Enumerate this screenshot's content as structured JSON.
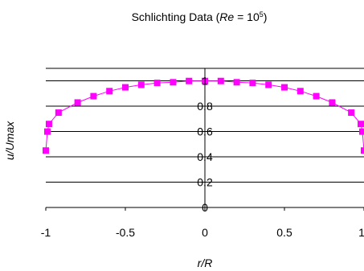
{
  "chart_data": {
    "type": "line",
    "title": {
      "prefix": "Schlichting Data (",
      "var": "Re",
      "mid": " = 10",
      "sup": "5",
      "suffix": ")"
    },
    "xlabel": "r/R",
    "ylabel": "u/Umax",
    "xlim": [
      -1,
      1
    ],
    "ylim": [
      0,
      1.1
    ],
    "x_ticks": [
      -1,
      -0.5,
      0,
      0.5,
      1
    ],
    "y_ticks": [
      0,
      0.2,
      0.4,
      0.6,
      0.8,
      1
    ],
    "x_tick_labels": [
      "-1",
      "-0.5",
      "0",
      "0.5",
      "1"
    ],
    "y_tick_labels": [
      "0",
      "0.2",
      "0.4",
      "0.6",
      "0.8",
      "1"
    ],
    "grid": "horizontal",
    "legend": "none",
    "series": [
      {
        "color": "#ff00ff",
        "marker": "square",
        "points": [
          [
            -1.0,
            0.45
          ],
          [
            -0.99,
            0.6
          ],
          [
            -0.98,
            0.66
          ],
          [
            -0.92,
            0.75
          ],
          [
            -0.8,
            0.83
          ],
          [
            -0.7,
            0.88
          ],
          [
            -0.6,
            0.92
          ],
          [
            -0.5,
            0.95
          ],
          [
            -0.4,
            0.97
          ],
          [
            -0.3,
            0.985
          ],
          [
            -0.2,
            0.99
          ],
          [
            -0.1,
            1.0
          ],
          [
            0.0,
            1.0
          ],
          [
            0.1,
            1.0
          ],
          [
            0.2,
            0.99
          ],
          [
            0.3,
            0.985
          ],
          [
            0.4,
            0.97
          ],
          [
            0.5,
            0.95
          ],
          [
            0.6,
            0.92
          ],
          [
            0.7,
            0.88
          ],
          [
            0.8,
            0.83
          ],
          [
            0.92,
            0.75
          ],
          [
            0.98,
            0.66
          ],
          [
            0.99,
            0.6
          ],
          [
            1.0,
            0.45
          ]
        ]
      }
    ]
  }
}
